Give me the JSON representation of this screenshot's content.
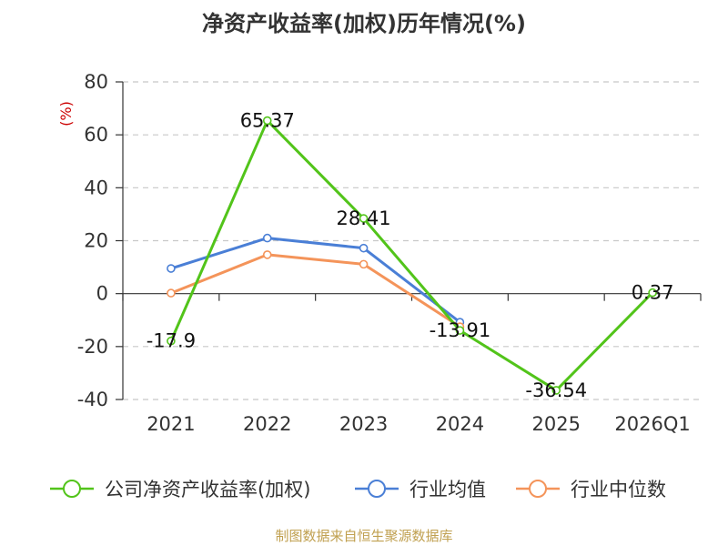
{
  "chart_data": {
    "type": "line",
    "title": "净资产收益率(加权)历年情况(%)",
    "ylabel": "(%)",
    "ylim": [
      -40,
      80
    ],
    "yticks": [
      80,
      60,
      40,
      20,
      0,
      -20,
      -40
    ],
    "categories": [
      "2021",
      "2022",
      "2023",
      "2024",
      "2025",
      "2026Q1"
    ],
    "series": [
      {
        "name": "公司净资产收益率(加权)",
        "color": "#52c41a",
        "values": [
          -17.9,
          65.37,
          28.41,
          -13.91,
          -36.54,
          0.37
        ],
        "labels": [
          "-17.9",
          "65.37",
          "28.41",
          "-13.91",
          "-36.54",
          "0.37"
        ]
      },
      {
        "name": "行业均值",
        "color": "#4a7fd6",
        "values": [
          9.5,
          21.0,
          17.2,
          -10.8,
          null,
          null
        ]
      },
      {
        "name": "行业中位数",
        "color": "#f4945a",
        "values": [
          0.2,
          14.7,
          11.1,
          -12.5,
          null,
          null
        ]
      }
    ],
    "grid": true,
    "legend_position": "bottom"
  },
  "source": "制图数据来自恒生聚源数据库"
}
